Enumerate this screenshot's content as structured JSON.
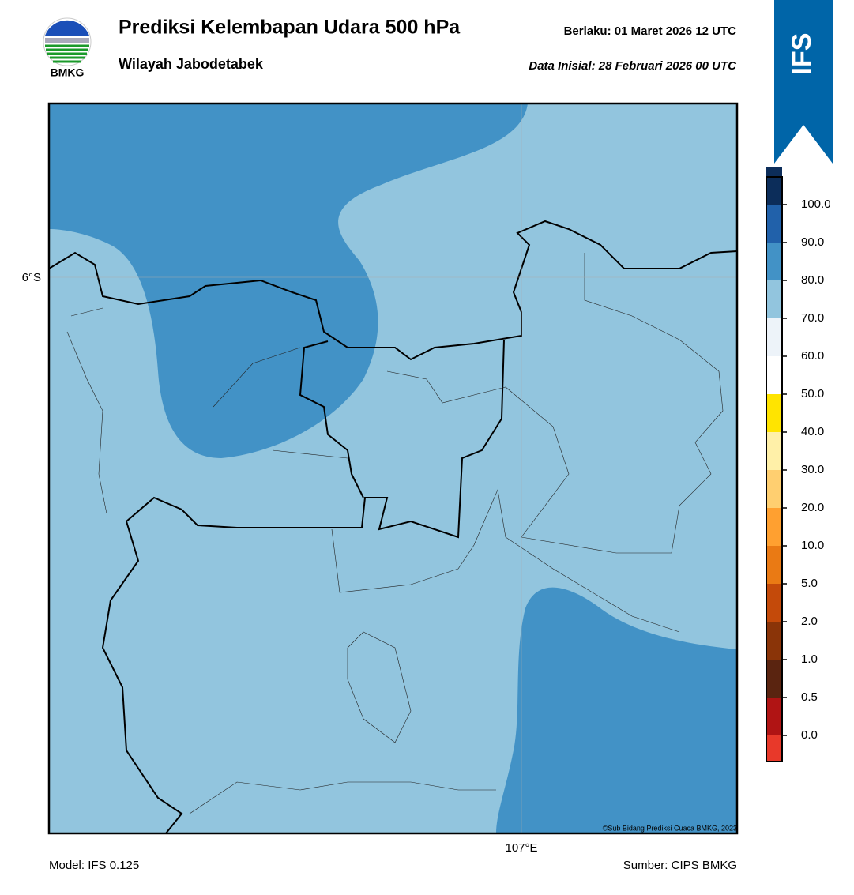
{
  "header": {
    "logo_text": "BMKG",
    "title": "Prediksi Kelembapan Udara 500 hPa",
    "subtitle": "Wilayah Jabodetabek",
    "valid": "Berlaku:  01 Maret 2026 12 UTC",
    "init": "Data Inisial:  28 Februari 2026 00 UTC",
    "badge": "IFS"
  },
  "map": {
    "lat_label": "6°S",
    "lon_label": "107°E",
    "credit": "©Sub Bidang Prediksi Cuaca BMKG, 2023"
  },
  "colorbar": {
    "labels": [
      "0.0",
      "0.5",
      "1.0",
      "2.0",
      "5.0",
      "10.0",
      "20.0",
      "30.0",
      "40.0",
      "50.0",
      "60.0",
      "70.0",
      "80.0",
      "90.0",
      "100.0"
    ],
    "colors": [
      "#e8392a",
      "#b01414",
      "#5a2410",
      "#8a3408",
      "#c44a0a",
      "#ea7a14",
      "#ffa030",
      "#ffcf70",
      "#fff0a8",
      "#ffe400",
      "#ffffff",
      "#edf3f9",
      "#92c5de",
      "#4292c6",
      "#2161aa",
      "#0c2d5a",
      "#2a0a42"
    ]
  },
  "footer": {
    "model": "Model: IFS 0.125",
    "source": "Sumber: CIPS BMKG"
  }
}
